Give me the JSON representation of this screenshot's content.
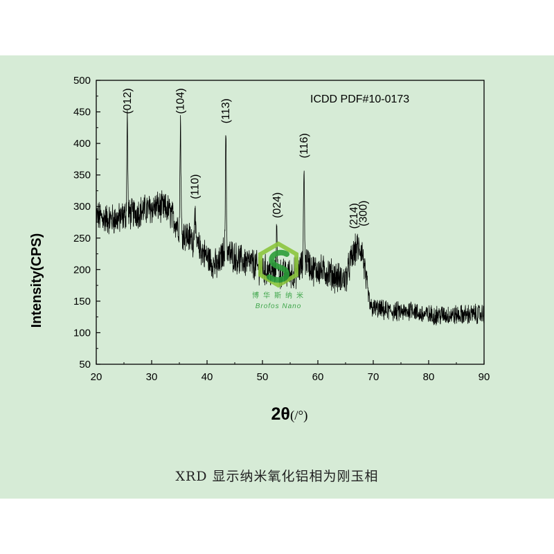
{
  "chart_data": {
    "type": "line",
    "xlabel_main": "2θ",
    "xlabel_unit": "(/°)",
    "ylabel": "Intensity(CPS)",
    "xlim": [
      20,
      90
    ],
    "ylim": [
      50,
      500
    ],
    "xticks": [
      20,
      30,
      40,
      50,
      60,
      70,
      80,
      90
    ],
    "yticks": [
      50,
      100,
      150,
      200,
      250,
      300,
      350,
      400,
      450,
      500
    ],
    "grid": false,
    "annotation": "ICDD PDF#10-0173",
    "color": "#000000",
    "profile": [
      [
        20,
        285
      ],
      [
        22,
        280
      ],
      [
        24,
        280
      ],
      [
        25,
        285
      ],
      [
        27,
        290
      ],
      [
        29,
        295
      ],
      [
        31,
        300
      ],
      [
        33,
        295
      ],
      [
        34,
        280
      ],
      [
        35,
        265
      ],
      [
        36,
        255
      ],
      [
        37,
        250
      ],
      [
        38,
        240
      ],
      [
        39,
        230
      ],
      [
        40,
        220
      ],
      [
        41,
        210
      ],
      [
        42,
        205
      ],
      [
        43,
        230
      ],
      [
        44,
        225
      ],
      [
        45,
        220
      ],
      [
        46,
        215
      ],
      [
        48,
        210
      ],
      [
        50,
        200
      ],
      [
        52,
        195
      ],
      [
        54,
        192
      ],
      [
        56,
        195
      ],
      [
        58,
        215
      ],
      [
        59,
        200
      ],
      [
        60,
        200
      ],
      [
        62,
        195
      ],
      [
        64,
        185
      ],
      [
        65,
        185
      ],
      [
        66,
        215
      ],
      [
        67,
        235
      ],
      [
        68,
        230
      ],
      [
        68.8,
        175
      ],
      [
        69.5,
        140
      ],
      [
        72,
        135
      ],
      [
        76,
        132
      ],
      [
        77,
        140
      ],
      [
        78,
        130
      ],
      [
        80,
        128
      ],
      [
        85,
        128
      ],
      [
        90,
        130
      ]
    ],
    "peaks": [
      {
        "label": "(012)",
        "x": 25.6,
        "y": 440
      },
      {
        "label": "(104)",
        "x": 35.2,
        "y": 440
      },
      {
        "label": "(110)",
        "x": 37.8,
        "y": 305
      },
      {
        "label": "(113)",
        "x": 43.4,
        "y": 425
      },
      {
        "label": "(024)",
        "x": 52.6,
        "y": 275
      },
      {
        "label": "(116)",
        "x": 57.5,
        "y": 370
      },
      {
        "label": "(214)",
        "x": 66.5,
        "y": 258
      },
      {
        "label": "(300)",
        "x": 68.2,
        "y": 262
      }
    ]
  },
  "watermark": {
    "cn": "博华斯纳米",
    "en": "Brofos Nano",
    "colors": [
      "#2d9e3a",
      "#8cc63f",
      "#0f7a3a"
    ]
  },
  "caption": "XRD 显示纳米氧化铝相为刚玉相"
}
